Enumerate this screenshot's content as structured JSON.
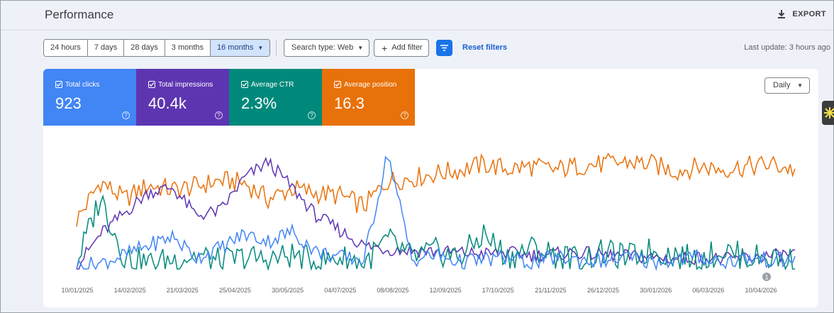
{
  "header": {
    "title": "Performance",
    "export_label": "EXPORT"
  },
  "toolbar": {
    "ranges": [
      "24 hours",
      "7 days",
      "28 days",
      "3 months",
      "16 months"
    ],
    "active_range": "16 months",
    "search_type": "Search type: Web",
    "add_filter": "Add filter",
    "reset_filters": "Reset filters",
    "last_update": "Last update: 3 hours ago"
  },
  "metrics": [
    {
      "label": "Total clicks",
      "value": "923",
      "color": "#4285f4"
    },
    {
      "label": "Total impressions",
      "value": "40.4k",
      "color": "#5e35b1"
    },
    {
      "label": "Average CTR",
      "value": "2.3%",
      "color": "#00897b"
    },
    {
      "label": "Average position",
      "value": "16.3",
      "color": "#e8710a"
    }
  ],
  "granularity": "Daily",
  "annotation_badge": "1",
  "chart_data": {
    "type": "line",
    "x_ticks": [
      "10/01/2025",
      "14/02/2025",
      "21/03/2025",
      "25/04/2025",
      "30/05/2025",
      "04/07/2025",
      "08/08/2025",
      "12/09/2025",
      "17/10/2025",
      "21/11/2025",
      "26/12/2025",
      "30/01/2026",
      "06/03/2026",
      "10/04/2026"
    ],
    "series": [
      {
        "name": "Average position",
        "color": "#e8710a",
        "values": [
          0.42,
          0.75,
          0.6,
          0.72,
          0.68,
          0.71,
          0.76,
          0.74,
          0.6,
          0.69,
          0.65,
          0.63,
          0.54,
          0.76,
          0.78,
          0.82,
          0.85,
          0.9,
          0.86,
          0.88,
          0.85,
          0.89,
          0.9,
          0.92,
          0.9,
          0.84,
          0.88,
          0.86,
          0.88,
          0.9,
          0.85
        ]
      },
      {
        "name": "Total impressions",
        "color": "#5e35b1",
        "values": [
          0.02,
          0.3,
          0.48,
          0.66,
          0.7,
          0.46,
          0.5,
          0.78,
          0.92,
          0.7,
          0.46,
          0.33,
          0.2,
          0.17,
          0.16,
          0.15,
          0.14,
          0.13,
          0.14,
          0.12,
          0.13,
          0.14,
          0.12,
          0.11,
          0.1,
          0.09,
          0.1,
          0.08,
          0.1,
          0.11,
          0.13
        ]
      },
      {
        "name": "Average CTR",
        "color": "#00897b",
        "values": [
          0.05,
          0.62,
          0.1,
          0.05,
          0.08,
          0.12,
          0.06,
          0.1,
          0.08,
          0.12,
          0.06,
          0.1,
          0.05,
          0.25,
          0.1,
          0.15,
          0.1,
          0.3,
          0.1,
          0.18,
          0.12,
          0.08,
          0.14,
          0.1,
          0.16,
          0.12,
          0.08,
          0.16,
          0.1,
          0.1,
          0.06
        ]
      },
      {
        "name": "Total clicks",
        "color": "#4285f4",
        "values": [
          0.02,
          0.05,
          0.12,
          0.2,
          0.28,
          0.1,
          0.18,
          0.3,
          0.24,
          0.32,
          0.15,
          0.1,
          0.08,
          1.0,
          0.08,
          0.12,
          0.06,
          0.08,
          0.1,
          0.05,
          0.1,
          0.08,
          0.07,
          0.1,
          0.06,
          0.08,
          0.1,
          0.06,
          0.09,
          0.08,
          0.07
        ]
      }
    ],
    "ylim": [
      0,
      1
    ],
    "grid": false,
    "legend": "top-left"
  }
}
